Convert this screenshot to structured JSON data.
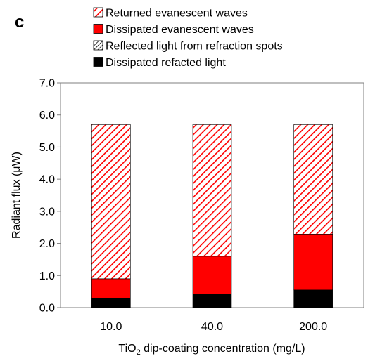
{
  "panel_label": "c",
  "chart_data": {
    "type": "bar",
    "stacked": true,
    "categories": [
      "10.0",
      "40.0",
      "200.0"
    ],
    "series": [
      {
        "name": "Dissipated refacted light",
        "values": [
          0.3,
          0.43,
          0.55
        ],
        "color": "#000000",
        "pattern": "solid"
      },
      {
        "name": "Reflected light from refraction spots",
        "values": [
          0.0,
          0.0,
          0.0
        ],
        "color": "#000000",
        "pattern": "hatch-black"
      },
      {
        "name": "Dissipated evanescent waves",
        "values": [
          0.6,
          1.17,
          1.74
        ],
        "color": "#ff0000",
        "pattern": "solid"
      },
      {
        "name": "Returned evanescent waves",
        "values": [
          4.8,
          4.1,
          3.41
        ],
        "color": "#ff0000",
        "pattern": "hatch-red"
      }
    ],
    "legend_order": [
      3,
      2,
      1,
      0
    ],
    "legend_position": "top",
    "ylim": [
      0,
      7
    ],
    "yticks": [
      "0.0",
      "1.0",
      "2.0",
      "3.0",
      "4.0",
      "5.0",
      "6.0",
      "7.0"
    ],
    "ylabel": "Radiant flux (μW)",
    "xlabel": {
      "prefix": "TiO",
      "subscript": "2",
      "suffix": " dip-coating concentration (mg/L)"
    },
    "grid": false
  }
}
